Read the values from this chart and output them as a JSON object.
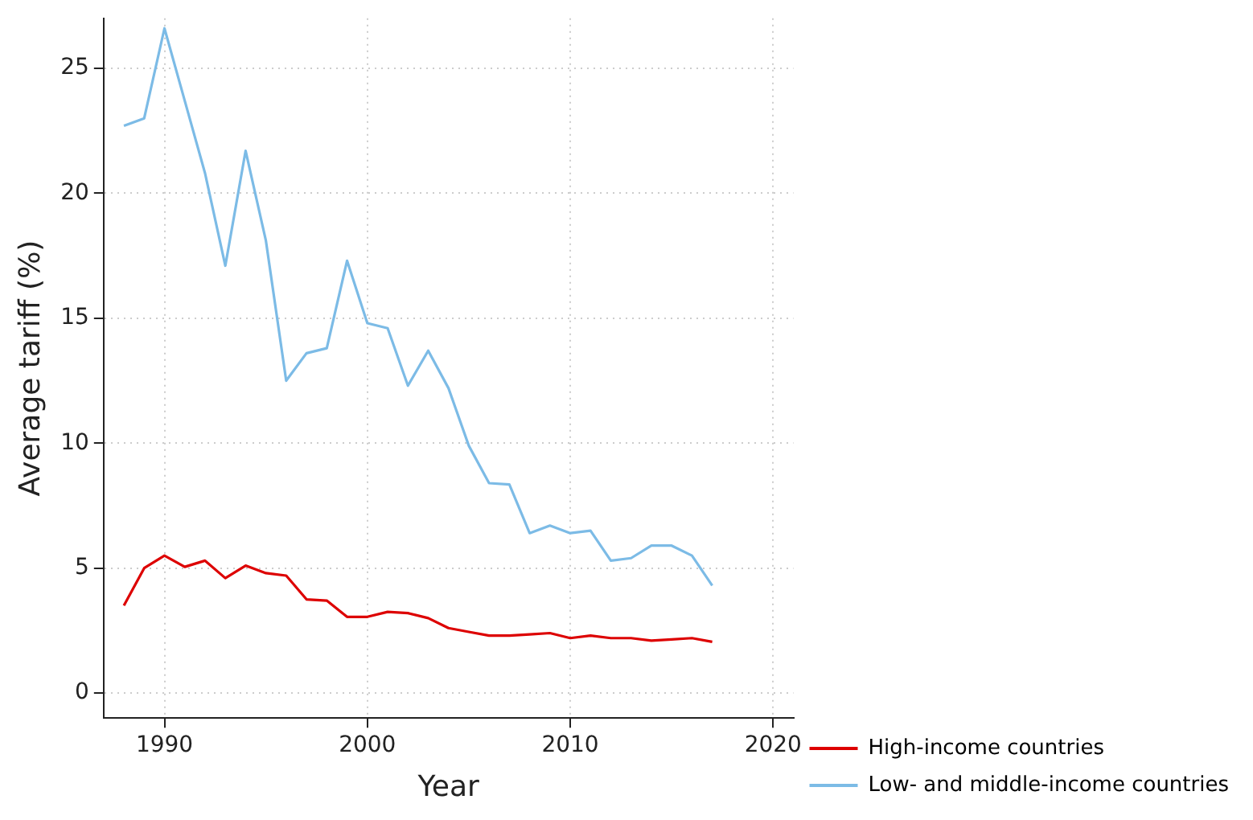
{
  "chart_data": {
    "type": "line",
    "xlabel": "Year",
    "ylabel": "Average tariff (%)",
    "x": [
      1988,
      1989,
      1990,
      1991,
      1992,
      1993,
      1994,
      1995,
      1996,
      1997,
      1998,
      1999,
      2000,
      2001,
      2002,
      2003,
      2004,
      2005,
      2006,
      2007,
      2008,
      2009,
      2010,
      2011,
      2012,
      2013,
      2014,
      2015,
      2016,
      2017
    ],
    "series": [
      {
        "name": "High-income countries",
        "color": "#dd0000",
        "values": [
          3.5,
          5.0,
          5.5,
          5.05,
          5.3,
          4.6,
          5.1,
          4.8,
          4.7,
          3.75,
          3.7,
          3.05,
          3.05,
          3.25,
          3.2,
          3.0,
          2.6,
          2.45,
          2.3,
          2.3,
          2.35,
          2.4,
          2.2,
          2.3,
          2.2,
          2.2,
          2.1,
          2.15,
          2.2,
          2.05
        ]
      },
      {
        "name": "Low- and middle-income countries",
        "color": "#7cbbe6",
        "values": [
          22.7,
          23.0,
          26.6,
          23.7,
          20.8,
          17.1,
          21.7,
          18.1,
          12.5,
          13.6,
          13.8,
          17.3,
          14.8,
          14.6,
          12.3,
          13.7,
          12.2,
          9.9,
          8.4,
          8.35,
          6.4,
          6.7,
          6.4,
          6.5,
          5.3,
          5.4,
          5.9,
          5.9,
          5.5,
          4.3
        ]
      }
    ],
    "xlim": [
      1987,
      2021
    ],
    "xticks": [
      1990,
      2000,
      2010,
      2020
    ],
    "ylim": [
      -1,
      27
    ],
    "yticks": [
      0,
      5,
      10,
      15,
      20,
      25
    ],
    "grid": true,
    "legend": "bottom right",
    "marker": "none",
    "line_style": "solid"
  }
}
